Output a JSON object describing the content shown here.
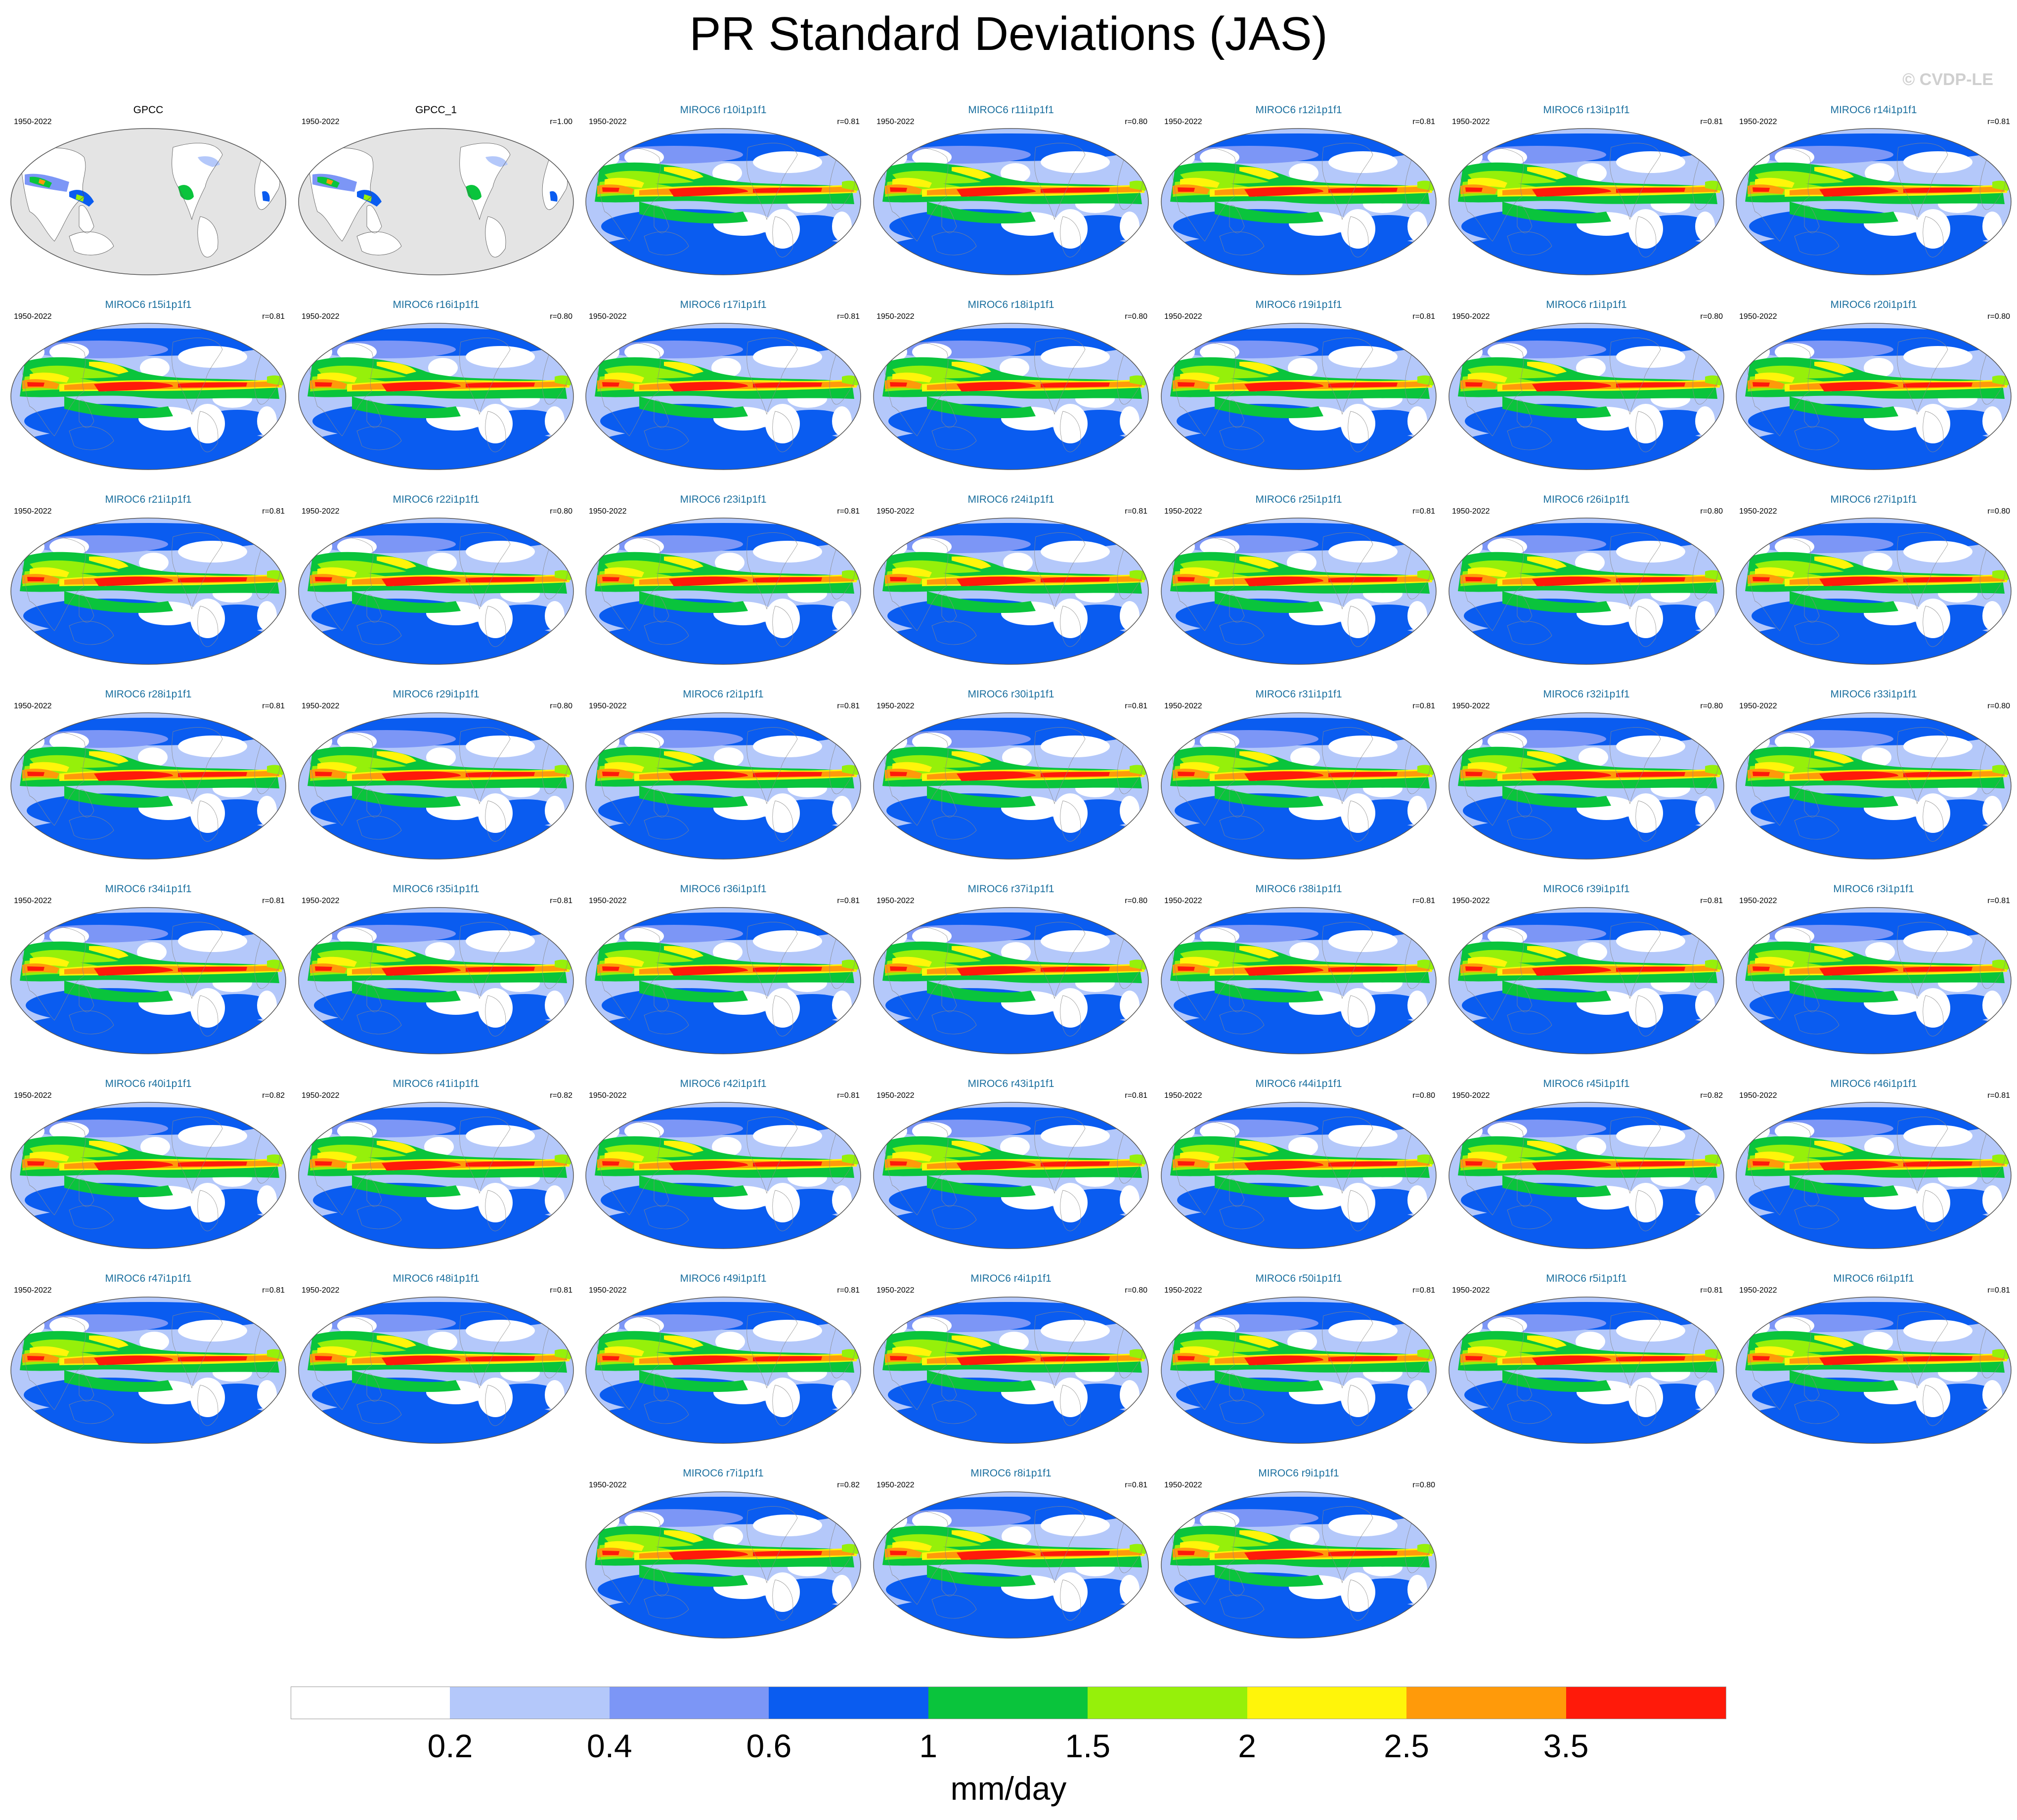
{
  "figure": {
    "title": "PR Standard Deviations (JAS)",
    "watermark": "© CVDP-LE"
  },
  "colorbar": {
    "units": "mm/day",
    "levels": [
      "0.2",
      "0.4",
      "0.6",
      "1",
      "1.5",
      "2",
      "2.5",
      "3.5"
    ],
    "colors": [
      "#ffffff",
      "#b4c8fa",
      "#7c96f6",
      "#0a5cf0",
      "#0ac43c",
      "#96f00a",
      "#fff50a",
      "#ff9a0a",
      "#ff1a0a"
    ]
  },
  "panels": [
    {
      "title": "GPCC",
      "period": "1950-2022",
      "corr": "",
      "type": "obs"
    },
    {
      "title": "GPCC_1",
      "period": "1950-2022",
      "corr": "r=1.00",
      "type": "obs"
    },
    {
      "title": "MIROC6 r10i1p1f1",
      "period": "1950-2022",
      "corr": "r=0.81",
      "type": "model"
    },
    {
      "title": "MIROC6 r11i1p1f1",
      "period": "1950-2022",
      "corr": "r=0.80",
      "type": "model"
    },
    {
      "title": "MIROC6 r12i1p1f1",
      "period": "1950-2022",
      "corr": "r=0.81",
      "type": "model"
    },
    {
      "title": "MIROC6 r13i1p1f1",
      "period": "1950-2022",
      "corr": "r=0.81",
      "type": "model"
    },
    {
      "title": "MIROC6 r14i1p1f1",
      "period": "1950-2022",
      "corr": "r=0.81",
      "type": "model"
    },
    {
      "title": "MIROC6 r15i1p1f1",
      "period": "1950-2022",
      "corr": "r=0.81",
      "type": "model"
    },
    {
      "title": "MIROC6 r16i1p1f1",
      "period": "1950-2022",
      "corr": "r=0.80",
      "type": "model"
    },
    {
      "title": "MIROC6 r17i1p1f1",
      "period": "1950-2022",
      "corr": "r=0.81",
      "type": "model"
    },
    {
      "title": "MIROC6 r18i1p1f1",
      "period": "1950-2022",
      "corr": "r=0.80",
      "type": "model"
    },
    {
      "title": "MIROC6 r19i1p1f1",
      "period": "1950-2022",
      "corr": "r=0.81",
      "type": "model"
    },
    {
      "title": "MIROC6 r1i1p1f1",
      "period": "1950-2022",
      "corr": "r=0.80",
      "type": "model"
    },
    {
      "title": "MIROC6 r20i1p1f1",
      "period": "1950-2022",
      "corr": "r=0.80",
      "type": "model"
    },
    {
      "title": "MIROC6 r21i1p1f1",
      "period": "1950-2022",
      "corr": "r=0.81",
      "type": "model"
    },
    {
      "title": "MIROC6 r22i1p1f1",
      "period": "1950-2022",
      "corr": "r=0.80",
      "type": "model"
    },
    {
      "title": "MIROC6 r23i1p1f1",
      "period": "1950-2022",
      "corr": "r=0.81",
      "type": "model"
    },
    {
      "title": "MIROC6 r24i1p1f1",
      "period": "1950-2022",
      "corr": "r=0.81",
      "type": "model"
    },
    {
      "title": "MIROC6 r25i1p1f1",
      "period": "1950-2022",
      "corr": "r=0.81",
      "type": "model"
    },
    {
      "title": "MIROC6 r26i1p1f1",
      "period": "1950-2022",
      "corr": "r=0.80",
      "type": "model"
    },
    {
      "title": "MIROC6 r27i1p1f1",
      "period": "1950-2022",
      "corr": "r=0.80",
      "type": "model"
    },
    {
      "title": "MIROC6 r28i1p1f1",
      "period": "1950-2022",
      "corr": "r=0.81",
      "type": "model"
    },
    {
      "title": "MIROC6 r29i1p1f1",
      "period": "1950-2022",
      "corr": "r=0.80",
      "type": "model"
    },
    {
      "title": "MIROC6 r2i1p1f1",
      "period": "1950-2022",
      "corr": "r=0.81",
      "type": "model"
    },
    {
      "title": "MIROC6 r30i1p1f1",
      "period": "1950-2022",
      "corr": "r=0.81",
      "type": "model"
    },
    {
      "title": "MIROC6 r31i1p1f1",
      "period": "1950-2022",
      "corr": "r=0.81",
      "type": "model"
    },
    {
      "title": "MIROC6 r32i1p1f1",
      "period": "1950-2022",
      "corr": "r=0.80",
      "type": "model"
    },
    {
      "title": "MIROC6 r33i1p1f1",
      "period": "1950-2022",
      "corr": "r=0.80",
      "type": "model"
    },
    {
      "title": "MIROC6 r34i1p1f1",
      "period": "1950-2022",
      "corr": "r=0.81",
      "type": "model"
    },
    {
      "title": "MIROC6 r35i1p1f1",
      "period": "1950-2022",
      "corr": "r=0.81",
      "type": "model"
    },
    {
      "title": "MIROC6 r36i1p1f1",
      "period": "1950-2022",
      "corr": "r=0.81",
      "type": "model"
    },
    {
      "title": "MIROC6 r37i1p1f1",
      "period": "1950-2022",
      "corr": "r=0.80",
      "type": "model"
    },
    {
      "title": "MIROC6 r38i1p1f1",
      "period": "1950-2022",
      "corr": "r=0.81",
      "type": "model"
    },
    {
      "title": "MIROC6 r39i1p1f1",
      "period": "1950-2022",
      "corr": "r=0.81",
      "type": "model"
    },
    {
      "title": "MIROC6 r3i1p1f1",
      "period": "1950-2022",
      "corr": "r=0.81",
      "type": "model"
    },
    {
      "title": "MIROC6 r40i1p1f1",
      "period": "1950-2022",
      "corr": "r=0.82",
      "type": "model"
    },
    {
      "title": "MIROC6 r41i1p1f1",
      "period": "1950-2022",
      "corr": "r=0.82",
      "type": "model"
    },
    {
      "title": "MIROC6 r42i1p1f1",
      "period": "1950-2022",
      "corr": "r=0.81",
      "type": "model"
    },
    {
      "title": "MIROC6 r43i1p1f1",
      "period": "1950-2022",
      "corr": "r=0.81",
      "type": "model"
    },
    {
      "title": "MIROC6 r44i1p1f1",
      "period": "1950-2022",
      "corr": "r=0.80",
      "type": "model"
    },
    {
      "title": "MIROC6 r45i1p1f1",
      "period": "1950-2022",
      "corr": "r=0.82",
      "type": "model"
    },
    {
      "title": "MIROC6 r46i1p1f1",
      "period": "1950-2022",
      "corr": "r=0.81",
      "type": "model"
    },
    {
      "title": "MIROC6 r47i1p1f1",
      "period": "1950-2022",
      "corr": "r=0.81",
      "type": "model"
    },
    {
      "title": "MIROC6 r48i1p1f1",
      "period": "1950-2022",
      "corr": "r=0.81",
      "type": "model"
    },
    {
      "title": "MIROC6 r49i1p1f1",
      "period": "1950-2022",
      "corr": "r=0.81",
      "type": "model"
    },
    {
      "title": "MIROC6 r4i1p1f1",
      "period": "1950-2022",
      "corr": "r=0.80",
      "type": "model"
    },
    {
      "title": "MIROC6 r50i1p1f1",
      "period": "1950-2022",
      "corr": "r=0.81",
      "type": "model"
    },
    {
      "title": "MIROC6 r5i1p1f1",
      "period": "1950-2022",
      "corr": "r=0.81",
      "type": "model"
    },
    {
      "title": "MIROC6 r6i1p1f1",
      "period": "1950-2022",
      "corr": "r=0.81",
      "type": "model"
    },
    {
      "title": "MIROC6 r7i1p1f1",
      "period": "1950-2022",
      "corr": "r=0.82",
      "type": "model"
    },
    {
      "title": "MIROC6 r8i1p1f1",
      "period": "1950-2022",
      "corr": "r=0.81",
      "type": "model"
    },
    {
      "title": "MIROC6 r9i1p1f1",
      "period": "1950-2022",
      "corr": "r=0.80",
      "type": "model"
    }
  ]
}
